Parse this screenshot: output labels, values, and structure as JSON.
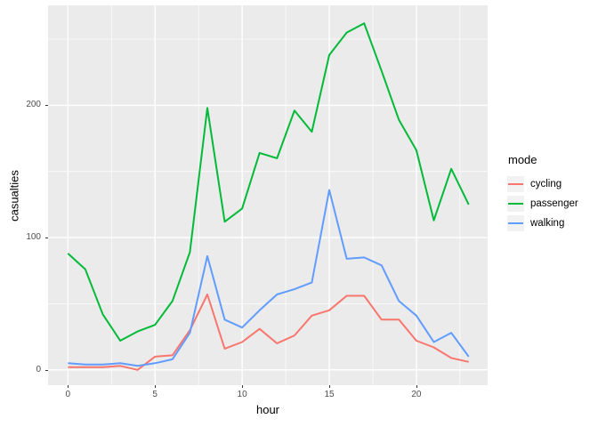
{
  "figure": {
    "x_axis_title": "hour",
    "y_axis_title": "casualties",
    "panel_bg_color": "#EBEBEB",
    "grid_color": "#FFFFFF",
    "tick_text_color": "#4D4D4D"
  },
  "legend": {
    "title": "mode",
    "position": "right",
    "entries": [
      "cycling",
      "passenger",
      "walking"
    ]
  },
  "chart_data": {
    "type": "line",
    "title": "",
    "xlabel": "hour",
    "ylabel": "casualties",
    "x": [
      0,
      1,
      2,
      3,
      4,
      5,
      6,
      7,
      8,
      9,
      10,
      11,
      12,
      13,
      14,
      15,
      16,
      17,
      18,
      19,
      20,
      21,
      22,
      23
    ],
    "series": [
      {
        "name": "cycling",
        "color": "#F8766D",
        "values": [
          2,
          2,
          2,
          3,
          0,
          10,
          11,
          30,
          57,
          16,
          21,
          31,
          20,
          26,
          41,
          45,
          56,
          56,
          38,
          38,
          22,
          17,
          9,
          6
        ]
      },
      {
        "name": "passenger",
        "color": "#00BA38",
        "values": [
          88,
          76,
          42,
          22,
          29,
          34,
          52,
          89,
          198,
          112,
          122,
          164,
          160,
          196,
          180,
          238,
          255,
          262,
          226,
          189,
          166,
          113,
          152,
          125
        ]
      },
      {
        "name": "walking",
        "color": "#619CFF",
        "values": [
          5,
          4,
          4,
          5,
          3,
          5,
          8,
          28,
          86,
          38,
          32,
          45,
          57,
          61,
          66,
          136,
          84,
          85,
          79,
          52,
          41,
          21,
          28,
          10
        ]
      }
    ],
    "x_ticks": [
      0,
      5,
      10,
      15,
      20
    ],
    "y_ticks": [
      0,
      100,
      200
    ],
    "x_minor_gridlines": [
      2.5,
      7.5,
      12.5,
      17.5,
      22.5
    ],
    "y_minor_gridlines": [
      50,
      150,
      250
    ],
    "xlim": [
      -1.14,
      24.09
    ],
    "ylim": [
      -11.6,
      275.6
    ],
    "grid": true,
    "legend_position": "right"
  }
}
